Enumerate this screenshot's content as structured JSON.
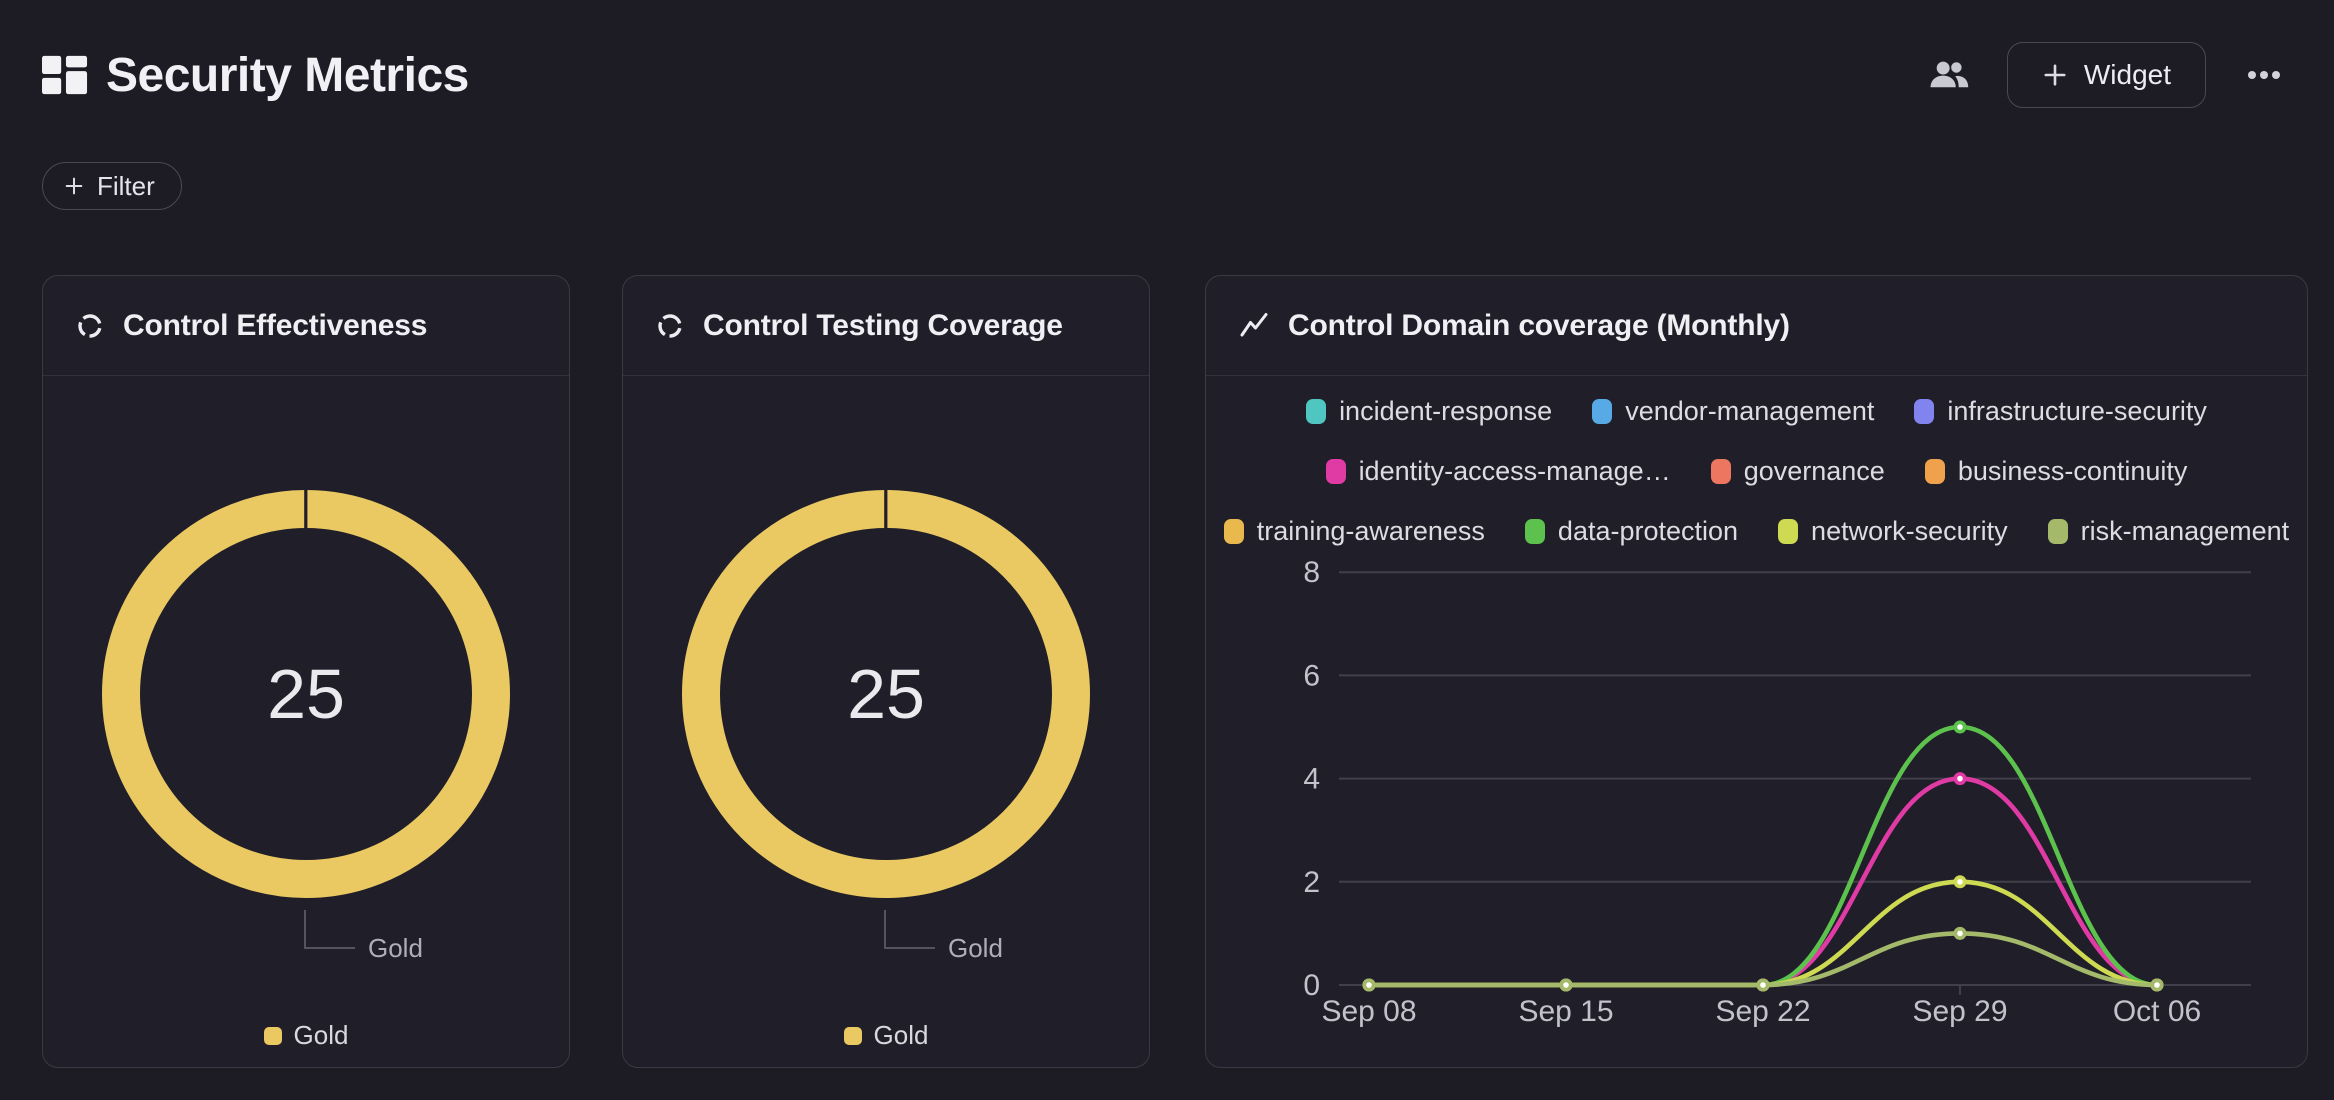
{
  "header": {
    "title": "Security Metrics",
    "widget_label": "Widget",
    "filter_label": "Filter"
  },
  "colors": {
    "background": "#1d1c25",
    "card_background": "#201f29",
    "card_border": "#3a3944",
    "gridline": "#413f49",
    "axis_text": "#c2c2cb",
    "gold": "#eac963",
    "callout_line": "#55545e",
    "callout_text": "#aeaeb8"
  },
  "chart_data": [
    {
      "type": "donut",
      "title": "Control Effectiveness",
      "value": 25,
      "center_text": "25",
      "callout_label": "Gold",
      "legend": [
        {
          "label": "Gold",
          "color": "#eac963"
        }
      ],
      "color": "#eac963"
    },
    {
      "type": "donut",
      "title": "Control Testing Coverage",
      "value": 25,
      "center_text": "25",
      "callout_label": "Gold",
      "legend": [
        {
          "label": "Gold",
          "color": "#eac963"
        }
      ],
      "color": "#eac963"
    },
    {
      "type": "line",
      "title": "Control Domain coverage (Monthly)",
      "x": [
        "Sep 08",
        "Sep 15",
        "Sep 22",
        "Sep 29",
        "Oct 06"
      ],
      "yticks": [
        0,
        2,
        4,
        6,
        8
      ],
      "ylim": [
        0,
        8
      ],
      "grid": true,
      "legend_position": "top",
      "legend_rows": [
        [
          0,
          1,
          2
        ],
        [
          3,
          4,
          5
        ],
        [
          6,
          7,
          8,
          9
        ]
      ],
      "series": [
        {
          "name": "incident-response",
          "color": "#4fc7c0",
          "values": null
        },
        {
          "name": "vendor-management",
          "color": "#57aae6",
          "values": null
        },
        {
          "name": "infrastructure-security",
          "color": "#8184ef",
          "values": null
        },
        {
          "name": "identity-access-management",
          "legend_label": "identity-access-manage…",
          "color": "#e03ba5",
          "values": [
            0,
            0,
            0,
            4,
            0
          ]
        },
        {
          "name": "governance",
          "color": "#ec7660",
          "values": null
        },
        {
          "name": "business-continuity",
          "color": "#efa24b",
          "values": null
        },
        {
          "name": "training-awareness",
          "color": "#eab94e",
          "values": null
        },
        {
          "name": "data-protection",
          "color": "#5cc24d",
          "values": [
            0,
            0,
            0,
            5,
            0
          ]
        },
        {
          "name": "network-security",
          "color": "#cdda52",
          "values": [
            0,
            0,
            0,
            2,
            0
          ]
        },
        {
          "name": "risk-management",
          "color": "#a4ba6a",
          "values": [
            0,
            0,
            0,
            1,
            0
          ]
        }
      ]
    }
  ]
}
